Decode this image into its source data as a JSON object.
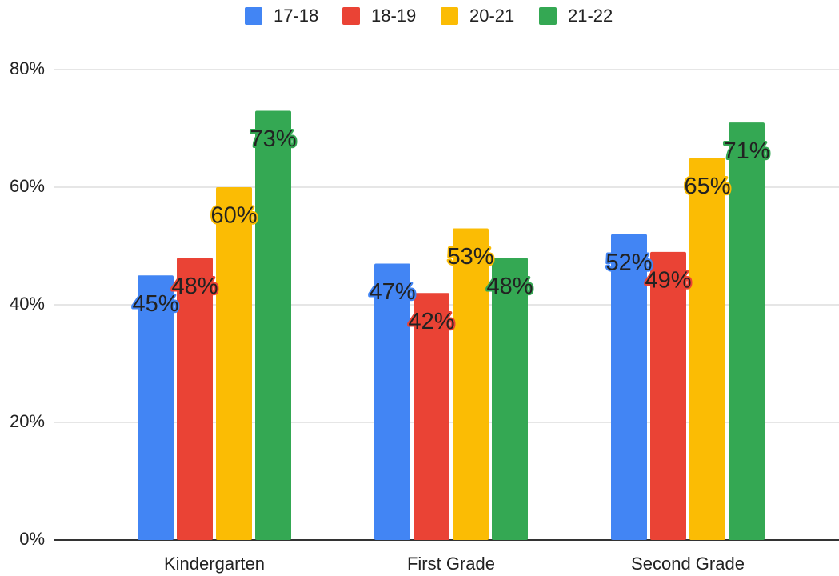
{
  "chart_data": {
    "type": "bar",
    "categories": [
      "Kindergarten",
      "First Grade",
      "Second Grade"
    ],
    "series": [
      {
        "name": "17-18",
        "color": "#4285f4",
        "values": [
          45,
          47,
          52
        ],
        "value_labels": [
          "45%",
          "47%",
          "52%"
        ]
      },
      {
        "name": "18-19",
        "color": "#ea4335",
        "values": [
          48,
          42,
          49
        ],
        "value_labels": [
          "48%",
          "42%",
          "49%"
        ]
      },
      {
        "name": "20-21",
        "color": "#fbbc04",
        "values": [
          60,
          53,
          65
        ],
        "value_labels": [
          "60%",
          "53%",
          "65%"
        ]
      },
      {
        "name": "21-22",
        "color": "#34a853",
        "values": [
          73,
          48,
          71
        ],
        "value_labels": [
          "73%",
          "48%",
          "71%"
        ]
      }
    ],
    "ylim": [
      0,
      80
    ],
    "yticks": [
      {
        "value": 0,
        "label": "0%"
      },
      {
        "value": 20,
        "label": "20%"
      },
      {
        "value": 40,
        "label": "40%"
      },
      {
        "value": 60,
        "label": "60%"
      },
      {
        "value": 80,
        "label": "80%"
      }
    ],
    "grid": true,
    "legend": "top"
  }
}
